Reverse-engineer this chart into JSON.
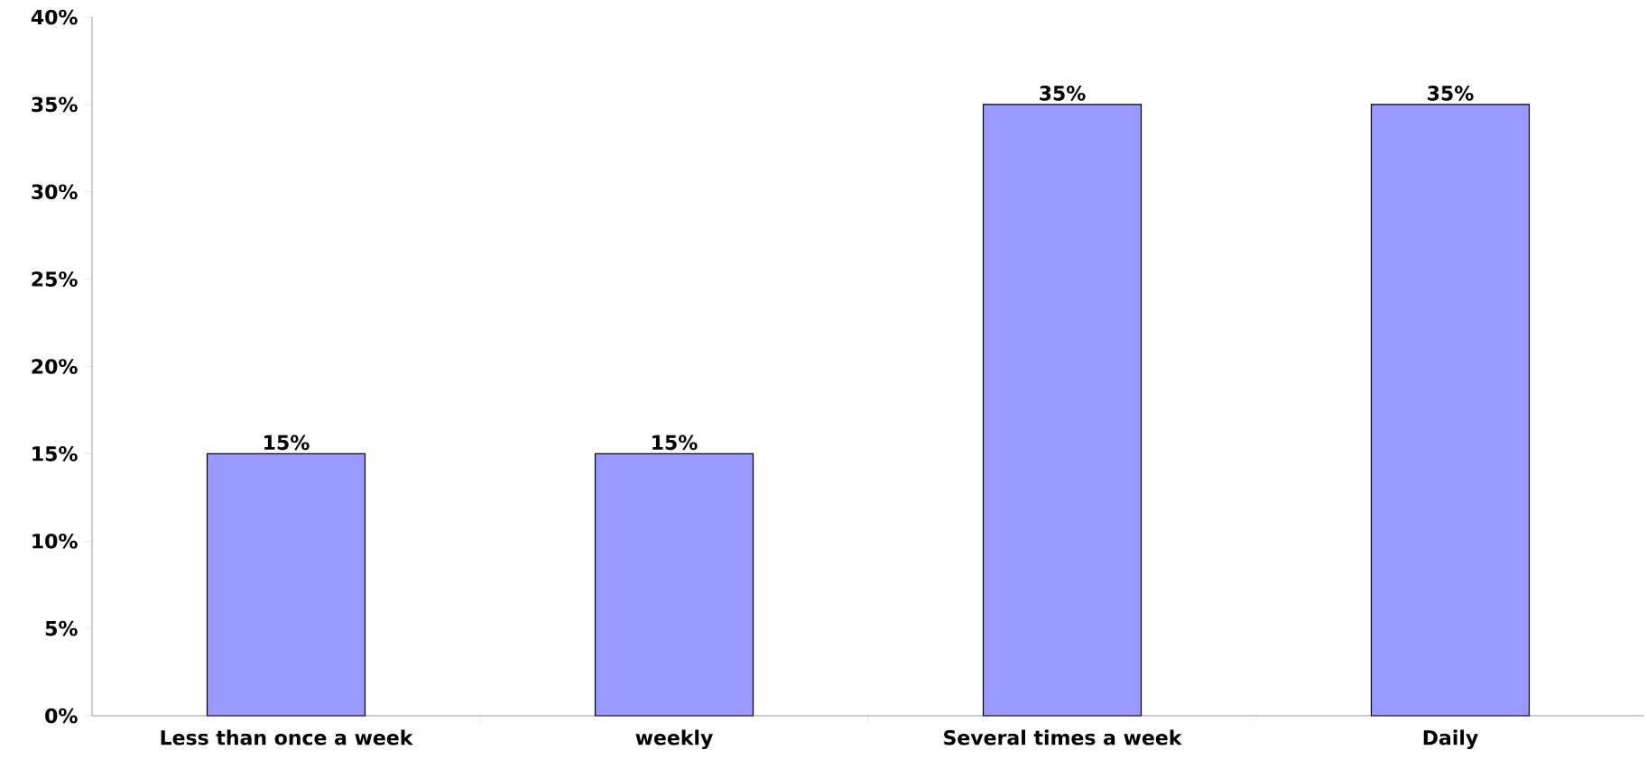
{
  "chart_data": {
    "type": "bar",
    "categories": [
      "Less than once a week",
      "weekly",
      "Several times a week",
      "Daily"
    ],
    "values": [
      15,
      15,
      35,
      35
    ],
    "value_labels": [
      "15%",
      "15%",
      "35%",
      "35%"
    ],
    "color": "#9999ff",
    "ylim": [
      0,
      40
    ],
    "yticks": [
      {
        "value": 0,
        "label": "0%"
      },
      {
        "value": 5,
        "label": "5%"
      },
      {
        "value": 10,
        "label": "10%"
      },
      {
        "value": 15,
        "label": "15%"
      },
      {
        "value": 20,
        "label": "20%"
      },
      {
        "value": 25,
        "label": "25%"
      },
      {
        "value": 30,
        "label": "30%"
      },
      {
        "value": 35,
        "label": "35%"
      },
      {
        "value": 40,
        "label": "40%"
      }
    ],
    "grid": false
  }
}
